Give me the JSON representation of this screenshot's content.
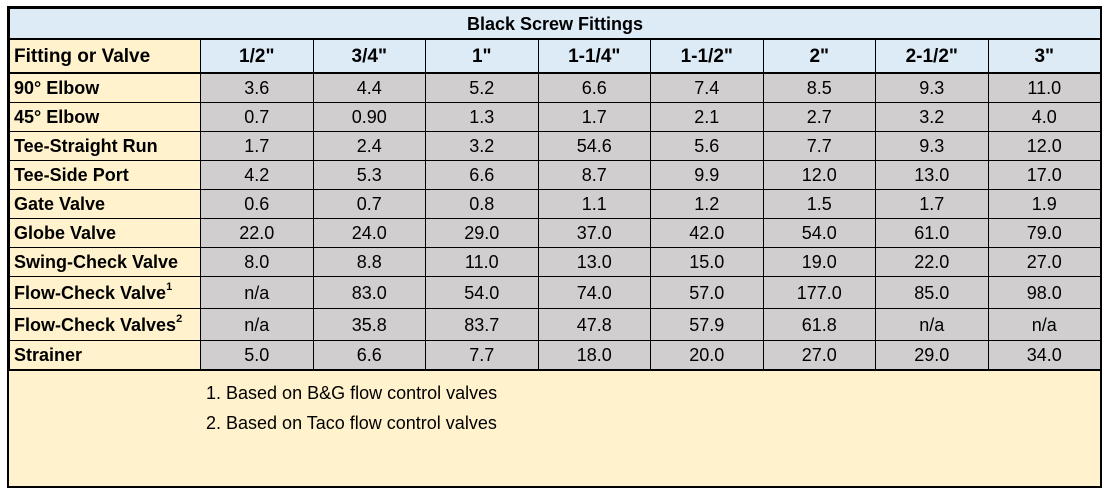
{
  "title": "Black Screw Fittings",
  "header": {
    "first": "Fitting or Valve",
    "sizes": [
      "1/2\"",
      "3/4\"",
      "1\"",
      "1-1/4\"",
      "1-1/2\"",
      "2\"",
      "2-1/2\"",
      "3\""
    ]
  },
  "rows": [
    {
      "name": "90° Elbow",
      "sup": "",
      "values": [
        "3.6",
        "4.4",
        "5.2",
        "6.6",
        "7.4",
        "8.5",
        "9.3",
        "11.0"
      ]
    },
    {
      "name": "45° Elbow",
      "sup": "",
      "values": [
        "0.7",
        "0.90",
        "1.3",
        "1.7",
        "2.1",
        "2.7",
        "3.2",
        "4.0"
      ]
    },
    {
      "name": "Tee-Straight Run",
      "sup": "",
      "values": [
        "1.7",
        "2.4",
        "3.2",
        "54.6",
        "5.6",
        "7.7",
        "9.3",
        "12.0"
      ]
    },
    {
      "name": "Tee-Side Port",
      "sup": "",
      "values": [
        "4.2",
        "5.3",
        "6.6",
        "8.7",
        "9.9",
        "12.0",
        "13.0",
        "17.0"
      ]
    },
    {
      "name": "Gate Valve",
      "sup": "",
      "values": [
        "0.6",
        "0.7",
        "0.8",
        "1.1",
        "1.2",
        "1.5",
        "1.7",
        "1.9"
      ]
    },
    {
      "name": "Globe Valve",
      "sup": "",
      "values": [
        "22.0",
        "24.0",
        "29.0",
        "37.0",
        "42.0",
        "54.0",
        "61.0",
        "79.0"
      ]
    },
    {
      "name": "Swing-Check Valve",
      "sup": "",
      "values": [
        "8.0",
        "8.8",
        "11.0",
        "13.0",
        "15.0",
        "19.0",
        "22.0",
        "27.0"
      ]
    },
    {
      "name": "Flow-Check Valve",
      "sup": "1",
      "values": [
        "n/a",
        "83.0",
        "54.0",
        "74.0",
        "57.0",
        "177.0",
        "85.0",
        "98.0"
      ]
    },
    {
      "name": "Flow-Check Valves",
      "sup": "2",
      "values": [
        "n/a",
        "35.8",
        "83.7",
        "47.8",
        "57.9",
        "61.8",
        "n/a",
        "n/a"
      ]
    },
    {
      "name": "Strainer",
      "sup": "",
      "values": [
        "5.0",
        "6.6",
        "7.7",
        "18.0",
        "20.0",
        "27.0",
        "29.0",
        "34.0"
      ]
    }
  ],
  "notes": [
    "1. Based on B&G flow control valves",
    "2. Based on Taco flow control valves"
  ],
  "colors": {
    "title_bg": "#ddebf7",
    "label_bg": "#fff2cc",
    "cell_bg": "#d0cece",
    "border": "#000000"
  }
}
